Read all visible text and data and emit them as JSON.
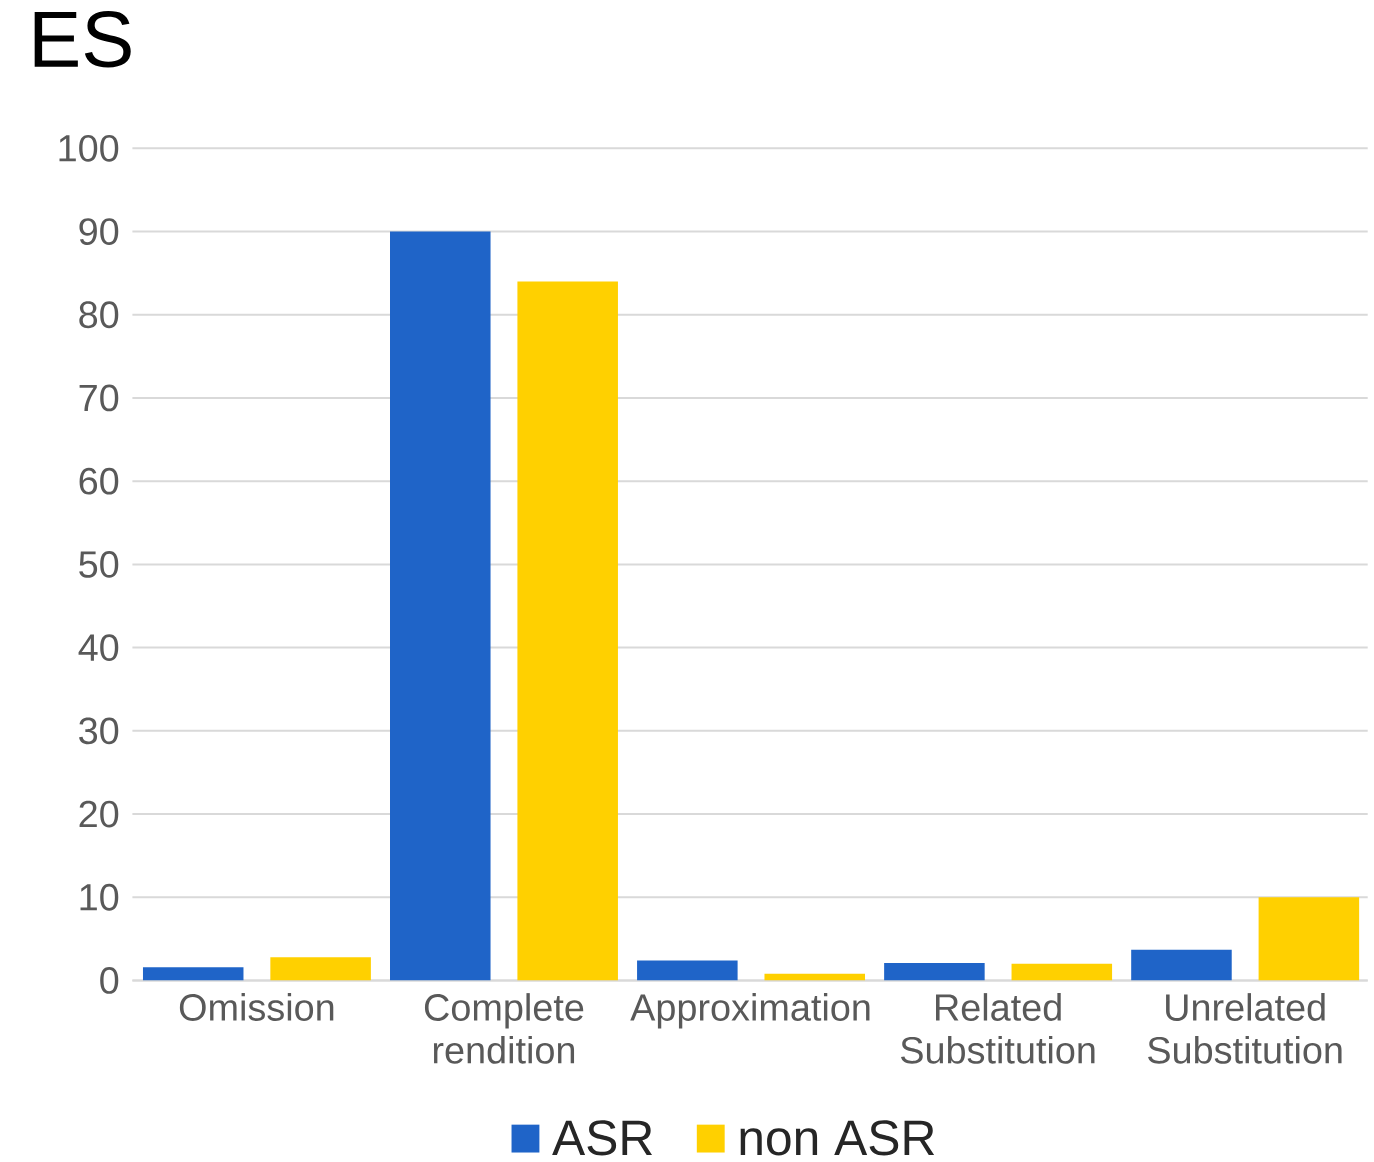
{
  "chart_data": {
    "type": "bar",
    "title": "ES",
    "categories": [
      "Omission",
      "Complete rendition",
      "Approximation",
      "Related Substitution",
      "Unrelated Substitution"
    ],
    "series": [
      {
        "name": "ASR",
        "color": "#1f64c8",
        "values": [
          1.6,
          90,
          2.4,
          2.1,
          3.7
        ]
      },
      {
        "name": "non ASR",
        "color": "#ffd000",
        "values": [
          2.8,
          84,
          0.8,
          2.0,
          10
        ]
      }
    ],
    "ylim": [
      0,
      100
    ],
    "yticks": [
      0,
      10,
      20,
      30,
      40,
      50,
      60,
      70,
      80,
      90,
      100
    ],
    "grid": "y",
    "legend": "bottom"
  }
}
